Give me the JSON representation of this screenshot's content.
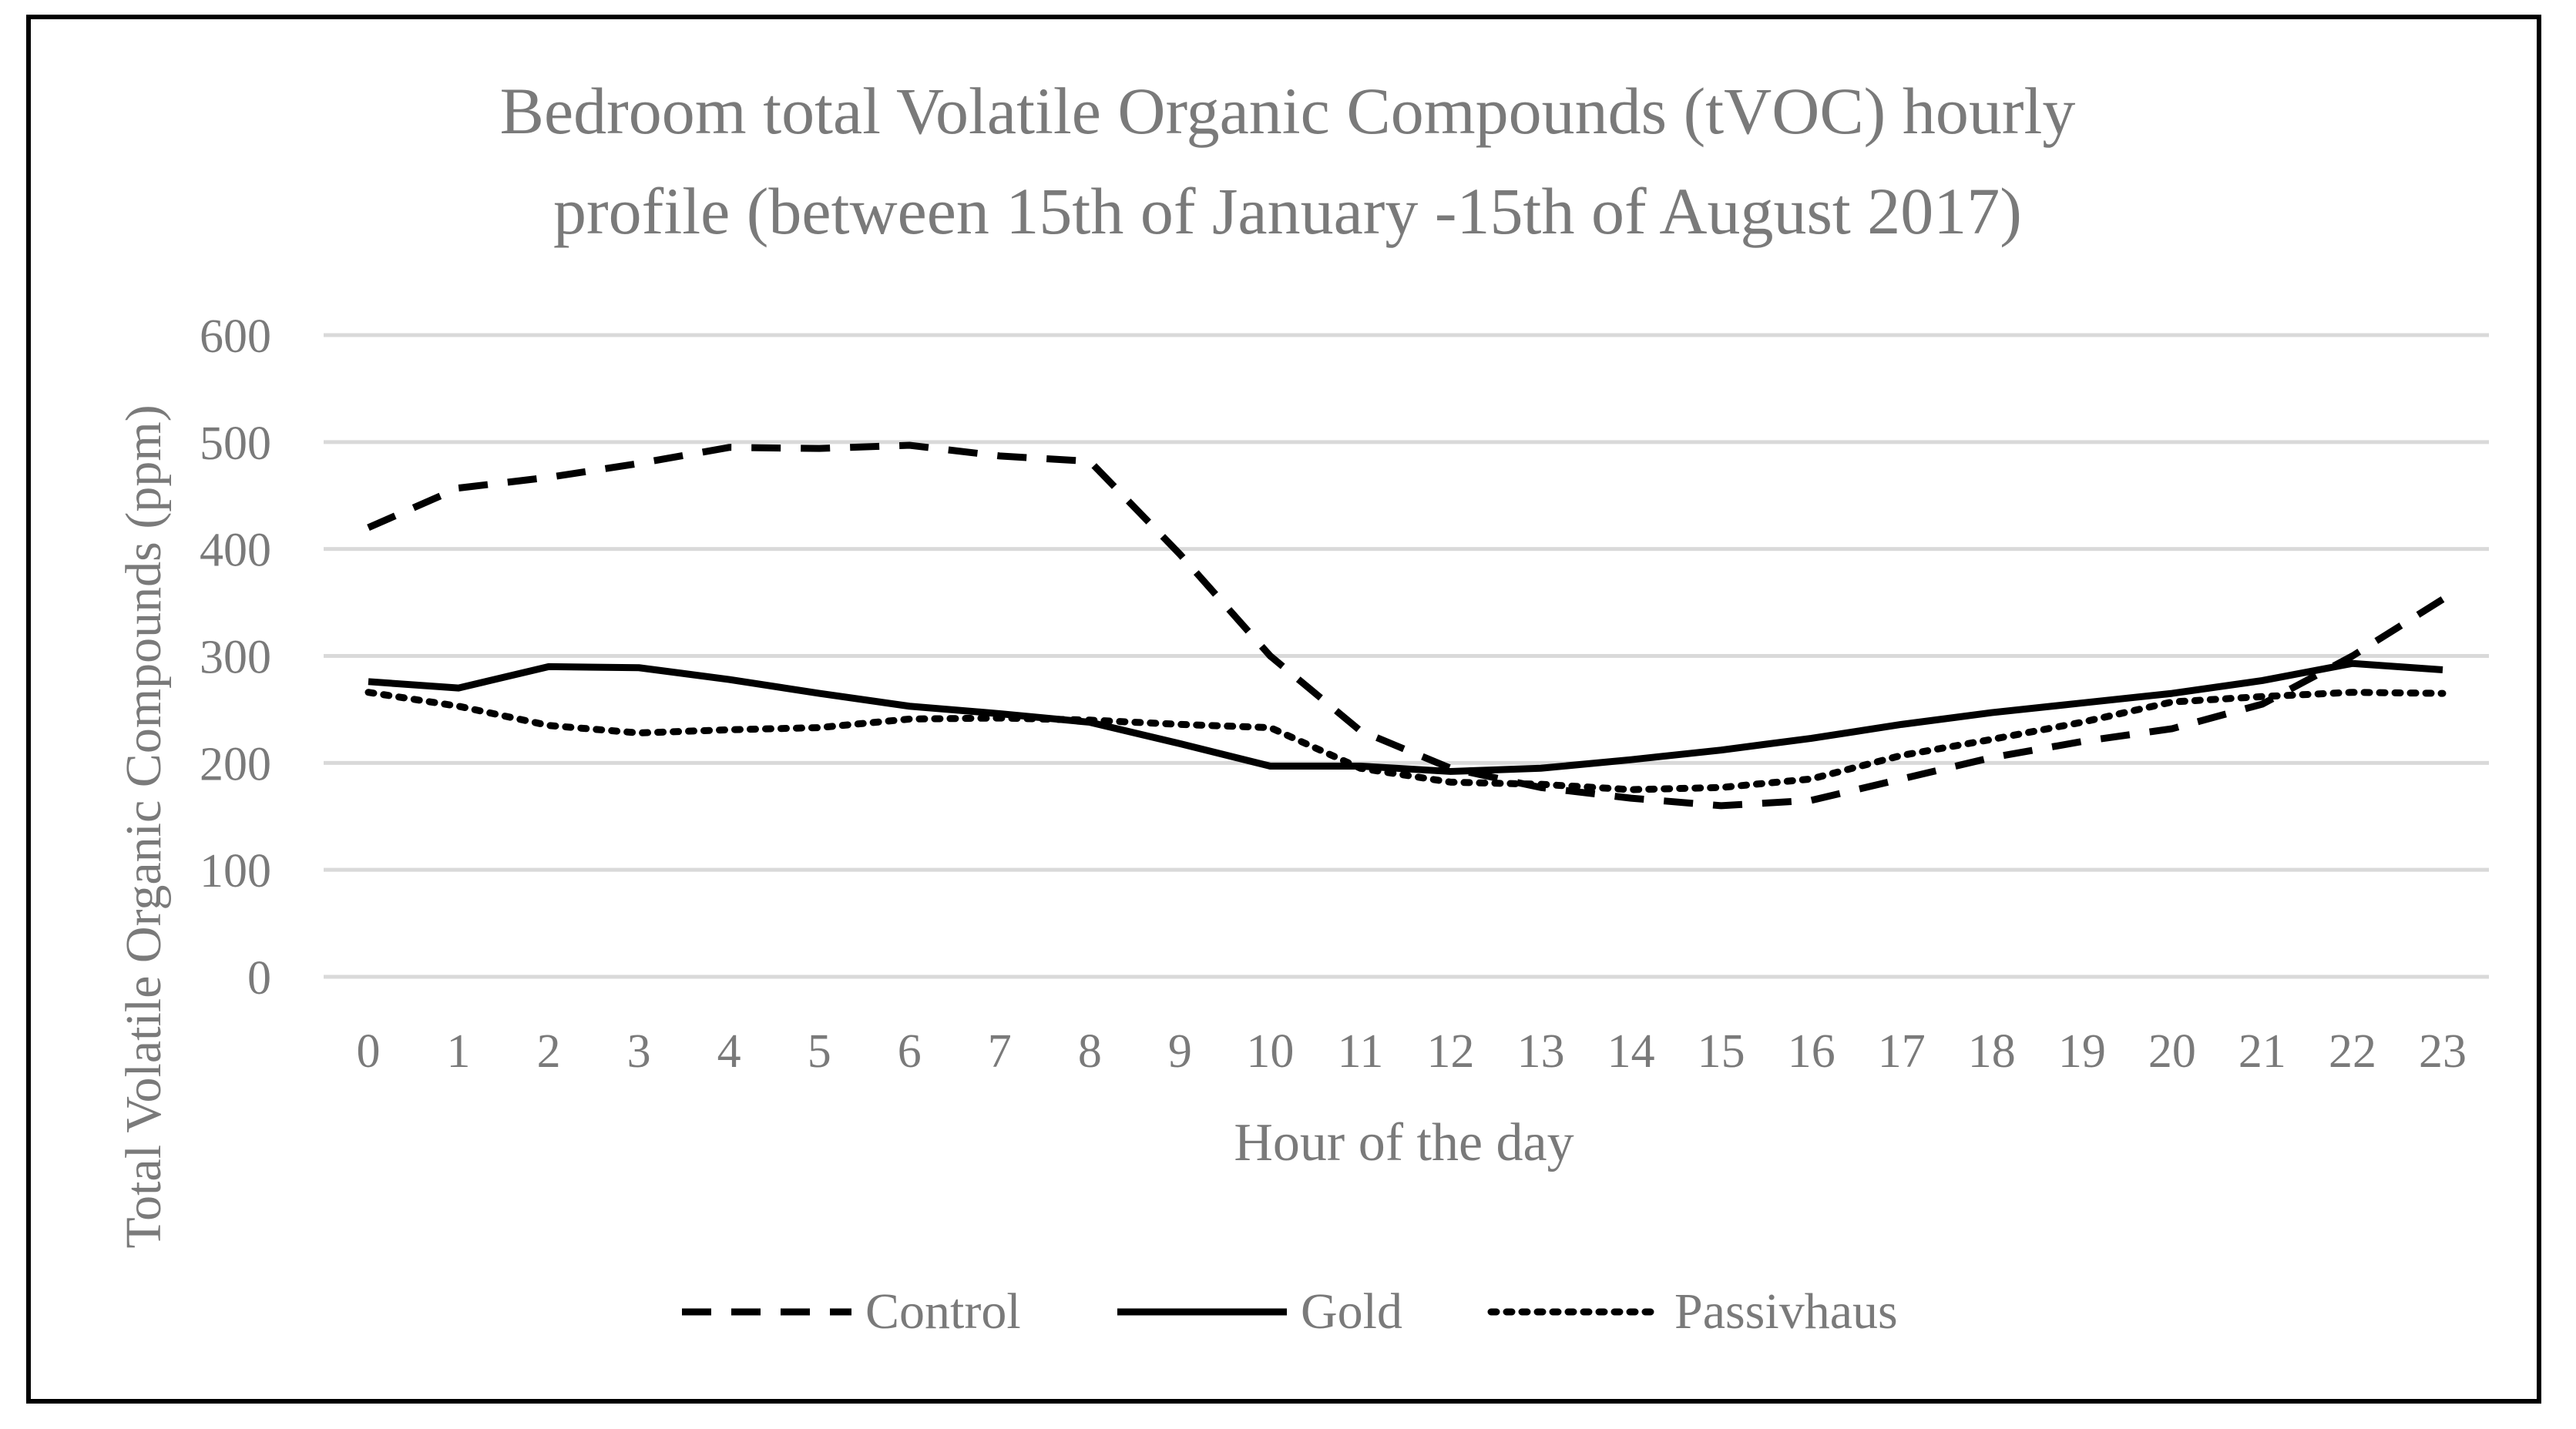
{
  "chart_data": {
    "type": "line",
    "title_lines": [
      "Bedroom total Volatile Organic Compounds (tVOC) hourly",
      "profile (between 15th of January -15th of August 2017)"
    ],
    "xlabel": "Hour of the day",
    "ylabel": "Total Volatile Organic Compounds (ppm)",
    "ylim": [
      0,
      600
    ],
    "yticks": [
      "0",
      "100",
      "200",
      "300",
      "400",
      "500",
      "600"
    ],
    "categories": [
      "0",
      "1",
      "2",
      "3",
      "4",
      "5",
      "6",
      "7",
      "8",
      "9",
      "10",
      "11",
      "12",
      "13",
      "14",
      "15",
      "16",
      "17",
      "18",
      "19",
      "20",
      "21",
      "22",
      "23"
    ],
    "grid": true,
    "legend_position": "bottom",
    "series": [
      {
        "name": "Control",
        "style": "dashed",
        "color": "#000000",
        "values": [
          420,
          457,
          467,
          480,
          495,
          494,
          497,
          487,
          482,
          395,
          300,
          230,
          195,
          177,
          167,
          160,
          165,
          185,
          205,
          220,
          232,
          255,
          300,
          353
        ]
      },
      {
        "name": "Gold",
        "style": "solid",
        "color": "#000000",
        "values": [
          276,
          270,
          290,
          289,
          278,
          265,
          253,
          246,
          238,
          218,
          197,
          197,
          192,
          195,
          203,
          212,
          223,
          236,
          247,
          256,
          265,
          277,
          293,
          287
        ]
      },
      {
        "name": "Passivhaus",
        "style": "dotted",
        "color": "#000000",
        "values": [
          266,
          253,
          235,
          228,
          231,
          233,
          241,
          242,
          240,
          236,
          233,
          195,
          182,
          180,
          175,
          177,
          185,
          207,
          222,
          238,
          257,
          262,
          266,
          265
        ]
      }
    ]
  }
}
